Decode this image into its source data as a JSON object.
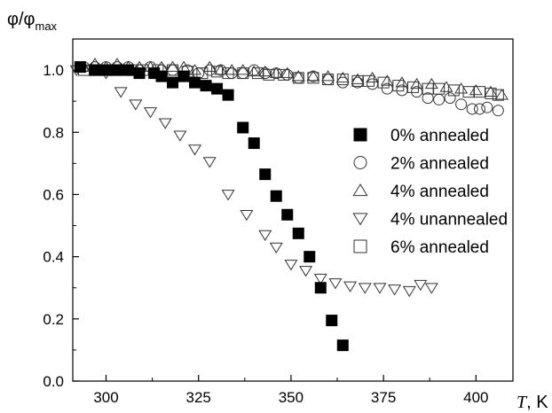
{
  "chart_data": {
    "type": "scatter",
    "ylabel": "φ/φmax",
    "ylabel_main": "φ/φ",
    "ylabel_sub": "max",
    "xlabel_italic": "T",
    "xlabel_unit": ", K",
    "xlim": [
      291,
      410
    ],
    "ylim": [
      0.0,
      1.1
    ],
    "xticks": [
      300,
      325,
      350,
      375,
      400
    ],
    "yticks": [
      0.0,
      0.2,
      0.4,
      0.6,
      0.8,
      1.0
    ],
    "ytick_labels": [
      "0.0",
      "0.2",
      "0.4",
      "0.6",
      "0.8",
      "1.0"
    ],
    "grid": false,
    "legend_position": "center-right",
    "series": [
      {
        "name": "0% annealed",
        "marker": "square-filled",
        "x": [
          293,
          297,
          300,
          303,
          306,
          309,
          313,
          315,
          318,
          321,
          324,
          327,
          330,
          333,
          337,
          340,
          343,
          346,
          349,
          352,
          355,
          358,
          361,
          364
        ],
        "y": [
          1.01,
          1.0,
          1.0,
          1.0,
          1.0,
          0.99,
          0.99,
          0.98,
          0.96,
          0.98,
          0.96,
          0.95,
          0.94,
          0.92,
          0.815,
          0.765,
          0.665,
          0.595,
          0.535,
          0.475,
          0.4,
          0.3,
          0.195,
          0.115
        ]
      },
      {
        "name": "2% annealed",
        "marker": "circle-open",
        "x": [
          294,
          297,
          300,
          303,
          306,
          309,
          312,
          315,
          318,
          322,
          325,
          328,
          331,
          334,
          337,
          340,
          343,
          346,
          349,
          352,
          356,
          360,
          364,
          368,
          372,
          376,
          380,
          384,
          387,
          390,
          393,
          396,
          399,
          401,
          403,
          406
        ],
        "y": [
          1.01,
          1.01,
          1.01,
          1.01,
          1.01,
          1.0,
          1.01,
          1.0,
          1.0,
          1.0,
          0.99,
          1.0,
          1.0,
          0.99,
          0.99,
          1.0,
          0.99,
          0.99,
          0.985,
          0.975,
          0.98,
          0.97,
          0.96,
          0.96,
          0.955,
          0.94,
          0.935,
          0.93,
          0.91,
          0.905,
          0.91,
          0.89,
          0.875,
          0.875,
          0.88,
          0.87
        ]
      },
      {
        "name": "4% annealed",
        "marker": "triangle-up-open",
        "x": [
          294,
          297,
          300,
          303,
          306,
          309,
          312,
          315,
          318,
          321,
          324,
          328,
          331,
          334,
          337,
          340,
          343,
          346,
          349,
          352,
          356,
          360,
          364,
          368,
          372,
          376,
          380,
          384,
          388,
          392,
          396,
          400,
          404,
          407
        ],
        "y": [
          1.01,
          1.02,
          1.01,
          1.02,
          1.01,
          1.01,
          1.01,
          1.01,
          1.01,
          1.01,
          1.0,
          1.01,
          1.0,
          1.0,
          1.0,
          0.995,
          0.995,
          0.99,
          0.99,
          0.98,
          0.98,
          0.98,
          0.975,
          0.97,
          0.975,
          0.965,
          0.96,
          0.955,
          0.955,
          0.945,
          0.94,
          0.935,
          0.93,
          0.92
        ]
      },
      {
        "name": "4% unannealed",
        "marker": "triangle-down-open",
        "x": [
          292,
          296,
          300,
          304,
          308,
          312,
          316,
          320,
          324,
          328,
          333,
          338,
          343,
          346,
          350,
          354,
          358,
          362,
          366,
          370,
          374,
          378,
          382,
          385,
          388
        ],
        "y": [
          1.0,
          1.0,
          0.99,
          0.93,
          0.89,
          0.865,
          0.83,
          0.79,
          0.745,
          0.705,
          0.6,
          0.535,
          0.47,
          0.43,
          0.375,
          0.355,
          0.33,
          0.315,
          0.305,
          0.3,
          0.3,
          0.295,
          0.29,
          0.31,
          0.3
        ]
      },
      {
        "name": "6% annealed",
        "marker": "square-open",
        "x": [
          294,
          297,
          300,
          303,
          307,
          310,
          314,
          318,
          322,
          326,
          330,
          333,
          337,
          341,
          344,
          348,
          352,
          356,
          360,
          364,
          368,
          371,
          375,
          379,
          383,
          387,
          390,
          394,
          398,
          401,
          404,
          406
        ],
        "y": [
          1.0,
          1.0,
          1.0,
          1.0,
          1.0,
          1.0,
          1.0,
          1.0,
          0.995,
          0.99,
          0.995,
          0.99,
          0.99,
          0.99,
          0.985,
          0.985,
          0.975,
          0.975,
          0.97,
          0.97,
          0.965,
          0.965,
          0.96,
          0.95,
          0.945,
          0.94,
          0.94,
          0.935,
          0.93,
          0.93,
          0.925,
          0.92
        ]
      }
    ]
  }
}
